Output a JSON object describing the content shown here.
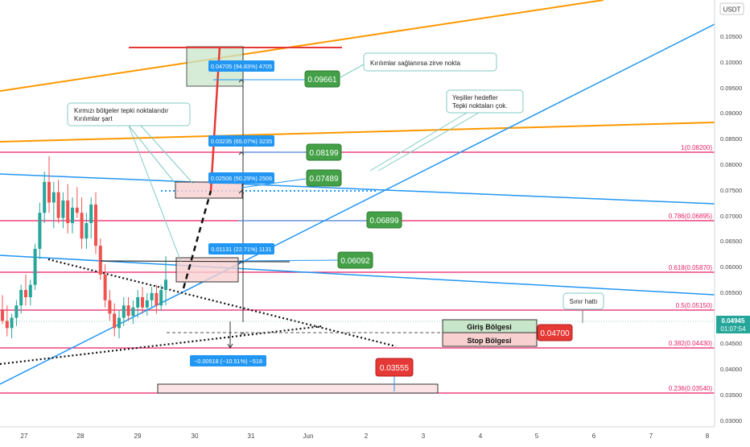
{
  "currency": "USDT",
  "price": {
    "value": "0.04945",
    "countdown": "01:07:54",
    "color": "#26a69a"
  },
  "colors": {
    "up": "#26a69a",
    "down": "#ef5350",
    "fib": "#e91e63",
    "blue_line": "#2196f3",
    "orange_line": "#ff9800",
    "callout_blue": "#2196f3",
    "callout_green": "#43a047",
    "callout_red": "#e53935"
  },
  "y_axis_ticks": [
    "0.10500",
    "0.10000",
    "0.09500",
    "0.09000",
    "0.08500",
    "0.08000",
    "0.07500",
    "0.07000",
    "0.06500",
    "0.06000",
    "0.05500",
    "0.05000",
    "0.04500",
    "0.04000",
    "0.03500",
    "0.03000"
  ],
  "x_axis_ticks": [
    "27",
    "28",
    "29",
    "30",
    "31",
    "Jun",
    "2",
    "3",
    "4",
    "5",
    "6",
    "7",
    "8"
  ],
  "fib_levels": [
    {
      "label": "1(0.08200)",
      "price": 0.082
    },
    {
      "label": "0.786(0.06895)",
      "price": 0.06895
    },
    {
      "label": "0.618(0.05870)",
      "price": 0.0587
    },
    {
      "label": "0.5(0.05150)",
      "price": 0.0515
    },
    {
      "label": "0.382(0.04430)",
      "price": 0.0443
    },
    {
      "label": "0.236(0.03540)",
      "price": 0.0354
    }
  ],
  "measure_labels": [
    {
      "text": "0.04705 (94.83%) 4705"
    },
    {
      "text": "0.03235 (65.07%) 3235"
    },
    {
      "text": "0.02506 (50.29%) 2506"
    },
    {
      "text": "0.01131 (22.71%) 1131"
    },
    {
      "text": "−0.00518 (−10.51%) −518"
    }
  ],
  "target_labels": [
    "0.09661",
    "0.08199",
    "0.07489",
    "0.06899",
    "0.06092"
  ],
  "entry_label": "0.04700",
  "stop_target_label": "0.03555",
  "notes": {
    "top": "Kırılımlar sağlanırsa zirve nokta",
    "left_line1": "Kırmızı bölgeler tepki noktalarıdır",
    "left_line2": "Kırılımlar şart",
    "right_line1": "Yeşiller hedefler",
    "right_line2": "Tepki noktaları çok.",
    "sinir": "Sınır hattı"
  },
  "zones": {
    "entry": "Giriş Bölgesi",
    "stop": "Stop Bölgesi"
  },
  "chart_data": {
    "type": "candlestick",
    "instrument_quote": "USDT",
    "x_ticks": [
      "27",
      "28",
      "29",
      "30",
      "31",
      "Jun",
      "2",
      "3",
      "4",
      "5",
      "6",
      "7",
      "8"
    ],
    "ylim": [
      0.029,
      0.1105
    ],
    "last_price": 0.04945,
    "candles": [
      [
        0.0465,
        0.048,
        0.0452,
        0.0455
      ],
      [
        0.0455,
        0.047,
        0.044,
        0.0448
      ],
      [
        0.0448,
        0.0462,
        0.0438,
        0.0458
      ],
      [
        0.0458,
        0.0475,
        0.045,
        0.047
      ],
      [
        0.047,
        0.049,
        0.0462,
        0.0485
      ],
      [
        0.0485,
        0.05,
        0.047,
        0.0478
      ],
      [
        0.0478,
        0.0495,
        0.047,
        0.049
      ],
      [
        0.049,
        0.053,
        0.0485,
        0.0525
      ],
      [
        0.0525,
        0.057,
        0.0515,
        0.056
      ],
      [
        0.056,
        0.06,
        0.055,
        0.059
      ],
      [
        0.059,
        0.0615,
        0.056,
        0.057
      ],
      [
        0.057,
        0.059,
        0.0545,
        0.058
      ],
      [
        0.058,
        0.0592,
        0.055,
        0.0555
      ],
      [
        0.0555,
        0.058,
        0.0545,
        0.0572
      ],
      [
        0.0572,
        0.0588,
        0.054,
        0.055
      ],
      [
        0.055,
        0.0575,
        0.054,
        0.0565
      ],
      [
        0.0565,
        0.0585,
        0.0555,
        0.056
      ],
      [
        0.056,
        0.0575,
        0.0525,
        0.0535
      ],
      [
        0.0535,
        0.056,
        0.0525,
        0.055
      ],
      [
        0.055,
        0.0575,
        0.0535,
        0.0568
      ],
      [
        0.0568,
        0.058,
        0.052,
        0.0528
      ],
      [
        0.0528,
        0.0535,
        0.0495,
        0.05
      ],
      [
        0.05,
        0.051,
        0.0468,
        0.0475
      ],
      [
        0.0475,
        0.0485,
        0.0455,
        0.0462
      ],
      [
        0.0462,
        0.0472,
        0.044,
        0.0448
      ],
      [
        0.0448,
        0.0465,
        0.0438,
        0.0458
      ],
      [
        0.0458,
        0.0478,
        0.045,
        0.047
      ],
      [
        0.047,
        0.0478,
        0.0455,
        0.046
      ],
      [
        0.046,
        0.0475,
        0.0452,
        0.0468
      ],
      [
        0.0468,
        0.0485,
        0.0458,
        0.0478
      ],
      [
        0.0478,
        0.0488,
        0.0462,
        0.0468
      ],
      [
        0.0468,
        0.0482,
        0.046,
        0.0475
      ],
      [
        0.0475,
        0.0488,
        0.0468,
        0.0482
      ],
      [
        0.0482,
        0.049,
        0.0462,
        0.047
      ],
      [
        0.047,
        0.049,
        0.0465,
        0.0485
      ],
      [
        0.0485,
        0.0518,
        0.047,
        0.0495
      ]
    ],
    "fib_levels": [
      [
        1,
        0.082
      ],
      [
        0.786,
        0.06895
      ],
      [
        0.618,
        0.0587
      ],
      [
        0.5,
        0.0515
      ],
      [
        0.382,
        0.0443
      ],
      [
        0.236,
        0.0354
      ]
    ],
    "targets": [
      0.09661,
      0.08199,
      0.07489,
      0.06899,
      0.06092
    ],
    "entry": 0.047,
    "stop_target": 0.03555
  }
}
